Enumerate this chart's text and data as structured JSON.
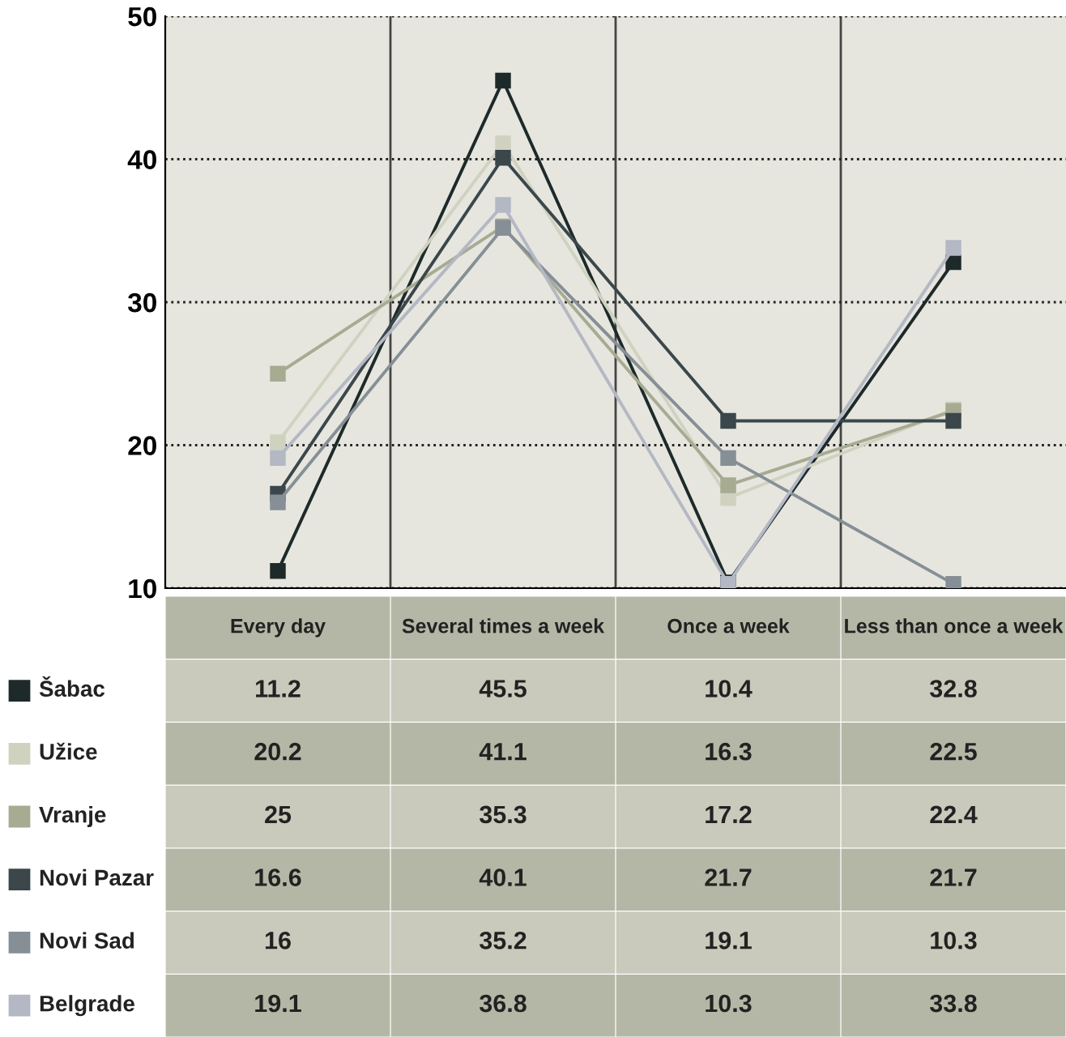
{
  "chart_data": {
    "type": "line",
    "categories": [
      "Every day",
      "Several times a week",
      "Once a week",
      "Less than once a week"
    ],
    "series": [
      {
        "name": "Šabac",
        "color": "#1e2a2a",
        "values": [
          11.2,
          45.5,
          10.4,
          32.8
        ]
      },
      {
        "name": "Užice",
        "color": "#d0d2c0",
        "values": [
          20.2,
          41.1,
          16.3,
          22.5
        ]
      },
      {
        "name": "Vranje",
        "color": "#a7ab92",
        "values": [
          25,
          35.3,
          17.2,
          22.4
        ]
      },
      {
        "name": "Novi Pazar",
        "color": "#3b474b",
        "values": [
          16.6,
          40.1,
          21.7,
          21.7
        ]
      },
      {
        "name": "Novi Sad",
        "color": "#868f96",
        "values": [
          16,
          35.2,
          19.1,
          10.3
        ]
      },
      {
        "name": "Belgrade",
        "color": "#b4b8c4",
        "values": [
          19.1,
          36.8,
          10.3,
          33.8
        ]
      }
    ],
    "ylim": [
      10,
      50
    ],
    "yticks": [
      10,
      20,
      30,
      40,
      50
    ],
    "grid": "y",
    "marker": "square",
    "line_style": "solid",
    "tick_labels": "y",
    "legend": "left",
    "data_labels": true
  }
}
